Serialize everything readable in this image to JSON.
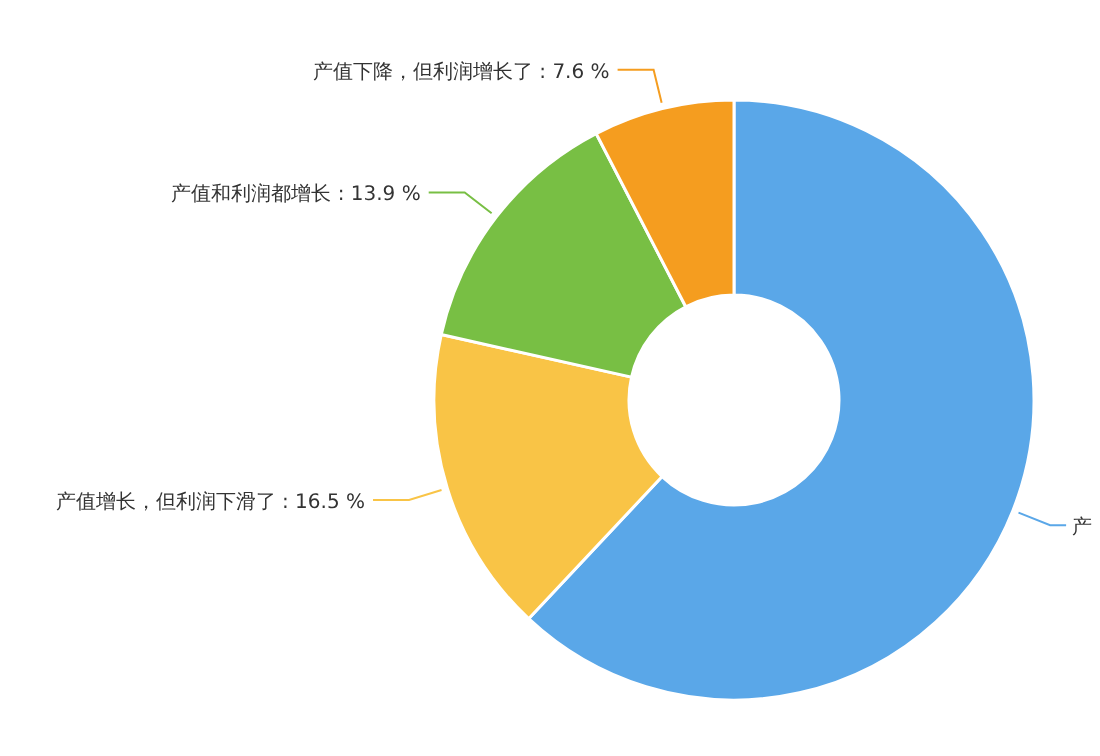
{
  "chart_data": {
    "type": "donut",
    "categories": [
      "产",
      "产值增长，但利润下滑了",
      "产值和利润都增长",
      "产值下降，但利润增长了"
    ],
    "values": [
      62.0,
      16.5,
      13.9,
      7.6
    ],
    "colors": [
      "#5aa7e8",
      "#f9c446",
      "#78bf44",
      "#f59d1f"
    ],
    "value_labels": [
      null,
      "16.5 %",
      "13.9 %",
      "7.6 %"
    ]
  }
}
